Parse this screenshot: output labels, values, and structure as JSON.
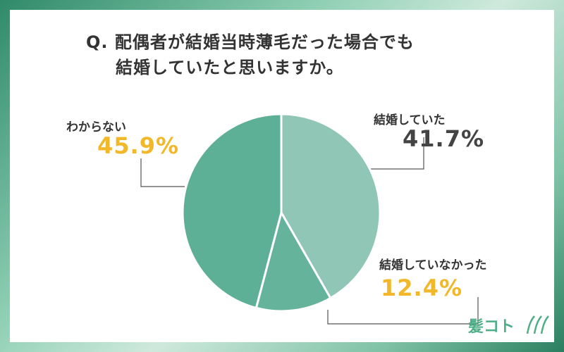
{
  "question": {
    "line1": "Q. 配偶者が結婚当時薄毛だった場合でも",
    "line2": "結婚していたと思いますか。"
  },
  "brand": {
    "name": "髪コト"
  },
  "colors": {
    "slice_yes": "#8fc6b5",
    "slice_no": "#66b39b",
    "slice_unknown": "#5daf95",
    "highlight_pct": "#f2b82a",
    "dark_pct": "#444444",
    "leader": "#555555"
  },
  "chart_data": {
    "type": "pie",
    "title": "",
    "categories": [
      "結婚していた",
      "結婚していなかった",
      "わからない"
    ],
    "values": [
      41.7,
      12.4,
      45.9
    ],
    "value_labels": [
      "41.7%",
      "12.4%",
      "45.9%"
    ],
    "start_angle_deg": 0,
    "direction": "clockwise"
  }
}
